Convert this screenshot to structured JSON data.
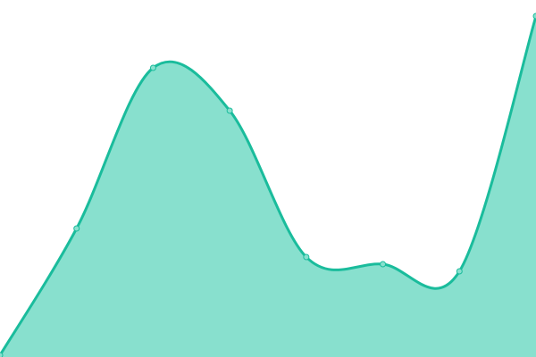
{
  "chart_data": {
    "type": "area",
    "title": "",
    "xlabel": "",
    "ylabel": "",
    "x": [
      0,
      1,
      2,
      3,
      4,
      5,
      6,
      7
    ],
    "values": [
      0.5,
      36,
      81,
      69,
      28,
      26,
      24,
      95.5
    ],
    "xlim": [
      0,
      7
    ],
    "ylim": [
      0,
      100
    ],
    "grid": false,
    "axes_visible": false,
    "curve": "smooth",
    "colors": {
      "line": "#1abc9c",
      "fill": "#88e0ce",
      "marker_fill": "#88e0ce"
    }
  }
}
